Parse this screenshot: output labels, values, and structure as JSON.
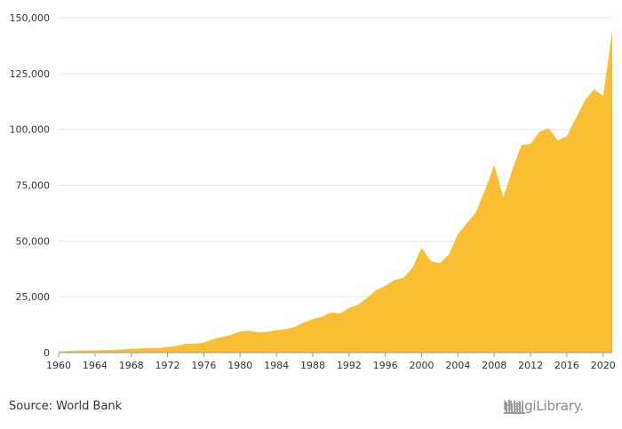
{
  "chart_data": {
    "type": "area",
    "x": [
      1960,
      1961,
      1962,
      1963,
      1964,
      1965,
      1966,
      1967,
      1968,
      1969,
      1970,
      1971,
      1972,
      1973,
      1974,
      1975,
      1976,
      1977,
      1978,
      1979,
      1980,
      1981,
      1982,
      1983,
      1984,
      1985,
      1986,
      1987,
      1988,
      1989,
      1990,
      1991,
      1992,
      1993,
      1994,
      1995,
      1996,
      1997,
      1998,
      1999,
      2000,
      2001,
      2002,
      2003,
      2004,
      2005,
      2006,
      2007,
      2008,
      2009,
      2010,
      2011,
      2012,
      2013,
      2014,
      2015,
      2016,
      2017,
      2018,
      2019,
      2020,
      2021
    ],
    "values": [
      500,
      700,
      800,
      900,
      1000,
      1100,
      1200,
      1400,
      1700,
      1900,
      2000,
      2100,
      2500,
      3000,
      4000,
      4000,
      4500,
      6000,
      7000,
      8000,
      9500,
      9800,
      9000,
      9300,
      10000,
      10500,
      11500,
      13500,
      15000,
      16000,
      18000,
      17500,
      20000,
      21500,
      24500,
      28000,
      30000,
      32500,
      33500,
      38000,
      47000,
      41000,
      40000,
      44000,
      53000,
      58000,
      63000,
      73000,
      84000,
      69500,
      82000,
      93000,
      93500,
      99000,
      100500,
      95000,
      97000,
      105000,
      113000,
      118000,
      115000,
      144000
    ],
    "color": "#F9BE31",
    "xticks": [
      "1960",
      "1964",
      "1968",
      "1972",
      "1976",
      "1980",
      "1984",
      "1988",
      "1992",
      "1996",
      "2000",
      "2004",
      "2008",
      "2012",
      "2016",
      "2020"
    ],
    "yticks": [
      "0",
      "25,000",
      "50,000",
      "75,000",
      "100,000",
      "125,000",
      "150,000"
    ],
    "ylim": [
      0,
      150000
    ],
    "xlim": [
      1960,
      2021
    ],
    "grid": true
  },
  "footer": {
    "source": "Source: World Bank",
    "logo": "HelgiLibrary."
  }
}
